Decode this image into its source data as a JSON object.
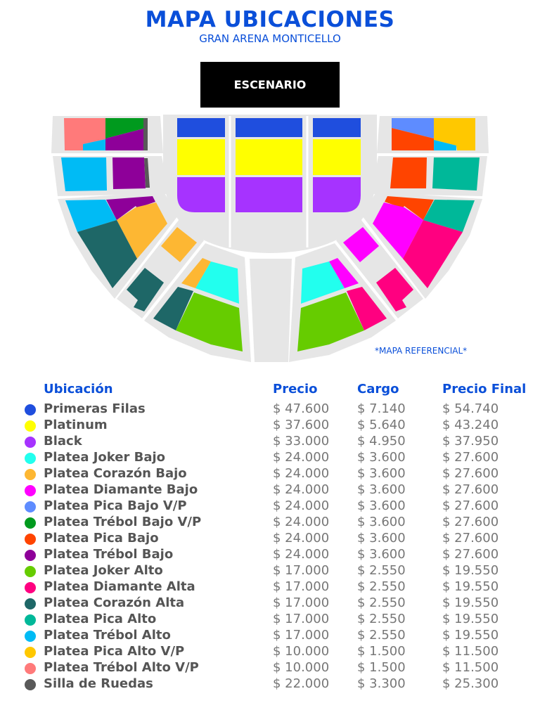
{
  "header": {
    "title": "MAPA UBICACIONES",
    "subtitle": "GRAN ARENA MONTICELLO"
  },
  "stage_label": "ESCENARIO",
  "note": "*MAPA REFERENCIAL*",
  "table": {
    "headers": {
      "location": "Ubicación",
      "price": "Precio",
      "charge": "Cargo",
      "final": "Precio Final"
    },
    "rows": [
      {
        "name": "Primeras Filas",
        "color": "#1f4ede",
        "price": "$ 47.600",
        "charge": "$ 7.140",
        "final": "$ 54.740"
      },
      {
        "name": "Platinum",
        "color": "#ffff00",
        "price": "$ 37.600",
        "charge": "$ 5.640",
        "final": "$ 43.240"
      },
      {
        "name": "Black",
        "color": "#a633ff",
        "price": "$ 33.000",
        "charge": "$ 4.950",
        "final": "$ 37.950"
      },
      {
        "name": "Platea Joker Bajo",
        "color": "#22ffee",
        "price": "$ 24.000",
        "charge": "$ 3.600",
        "final": "$ 27.600"
      },
      {
        "name": "Platea Corazón Bajo",
        "color": "#fdb733",
        "price": "$ 24.000",
        "charge": "$ 3.600",
        "final": "$ 27.600"
      },
      {
        "name": "Platea Diamante Bajo",
        "color": "#ff00ff",
        "price": "$ 24.000",
        "charge": "$ 3.600",
        "final": "$ 27.600"
      },
      {
        "name": "Platea Pica Bajo V/P",
        "color": "#5e8cff",
        "price": "$ 24.000",
        "charge": "$ 3.600",
        "final": "$ 27.600"
      },
      {
        "name": "Platea Trébol Bajo V/P",
        "color": "#009a1e",
        "price": "$ 24.000",
        "charge": "$ 3.600",
        "final": "$ 27.600"
      },
      {
        "name": "Platea Pica Bajo",
        "color": "#ff4400",
        "price": "$ 24.000",
        "charge": "$ 3.600",
        "final": "$ 27.600"
      },
      {
        "name": "Platea Trébol Bajo",
        "color": "#8e0099",
        "price": "$ 24.000",
        "charge": "$ 3.600",
        "final": "$ 27.600"
      },
      {
        "name": "Platea Joker Alto",
        "color": "#66cc00",
        "price": "$ 17.000",
        "charge": "$ 2.550",
        "final": "$ 19.550"
      },
      {
        "name": "Platea Diamante Alta",
        "color": "#ff0080",
        "price": "$ 17.000",
        "charge": "$ 2.550",
        "final": "$ 19.550"
      },
      {
        "name": "Platea Corazón Alta",
        "color": "#1e6767",
        "price": "$ 17.000",
        "charge": "$ 2.550",
        "final": "$ 19.550"
      },
      {
        "name": "Platea Pica Alto",
        "color": "#00b899",
        "price": "$ 17.000",
        "charge": "$ 2.550",
        "final": "$ 19.550"
      },
      {
        "name": "Platea Trébol Alto",
        "color": "#00bbf5",
        "price": "$ 17.000",
        "charge": "$ 2.550",
        "final": "$ 19.550"
      },
      {
        "name": "Platea Pica Alto V/P",
        "color": "#ffc800",
        "price": "$ 10.000",
        "charge": "$ 1.500",
        "final": "$ 11.500"
      },
      {
        "name": "Platea Trébol Alto V/P",
        "color": "#ff7a7a",
        "price": "$ 10.000",
        "charge": "$ 1.500",
        "final": "$ 11.500"
      },
      {
        "name": "Silla de Ruedas",
        "color": "#595959",
        "price": "$ 22.000",
        "charge": "$ 3.300",
        "final": "$ 25.300"
      }
    ]
  },
  "colors": {
    "title": "#0a4fd9",
    "section_bg": "#e6e6e6"
  }
}
